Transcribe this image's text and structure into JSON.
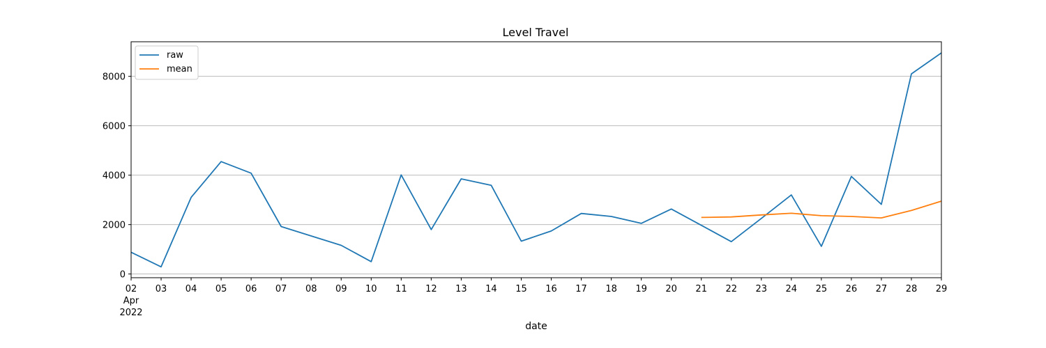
{
  "chart_data": {
    "type": "line",
    "title": "Level Travel",
    "xlabel": "date",
    "ylabel": "",
    "x": [
      "2022-04-02",
      "2022-04-03",
      "2022-04-04",
      "2022-04-05",
      "2022-04-06",
      "2022-04-07",
      "2022-04-08",
      "2022-04-09",
      "2022-04-10",
      "2022-04-11",
      "2022-04-12",
      "2022-04-13",
      "2022-04-14",
      "2022-04-15",
      "2022-04-16",
      "2022-04-17",
      "2022-04-18",
      "2022-04-19",
      "2022-04-20",
      "2022-04-21",
      "2022-04-22",
      "2022-04-23",
      "2022-04-24",
      "2022-04-25",
      "2022-04-26",
      "2022-04-27",
      "2022-04-28",
      "2022-04-29"
    ],
    "x_tick_labels": [
      "02",
      "03",
      "04",
      "05",
      "06",
      "07",
      "08",
      "09",
      "10",
      "11",
      "12",
      "13",
      "14",
      "15",
      "16",
      "17",
      "18",
      "19",
      "20",
      "21",
      "22",
      "23",
      "24",
      "25",
      "26",
      "27",
      "28",
      "29"
    ],
    "x_tick_sublabels": [
      "Apr",
      "2022"
    ],
    "xlim": [
      "2022-04-02",
      "2022-04-29"
    ],
    "ylim": [
      -150,
      9400
    ],
    "y_ticks": [
      0,
      2000,
      4000,
      6000,
      8000
    ],
    "y_tick_labels": [
      "0",
      "2000",
      "4000",
      "6000",
      "8000"
    ],
    "grid": "horizontal",
    "legend_position": "top-left",
    "series": [
      {
        "name": "raw",
        "color": "#1f77b4",
        "values": [
          880,
          290,
          3100,
          4550,
          4080,
          1920,
          1540,
          1160,
          500,
          4010,
          1800,
          3850,
          3590,
          1330,
          1740,
          2450,
          2330,
          2050,
          2630,
          1970,
          1310,
          2250,
          3200,
          1120,
          3950,
          2820,
          8100,
          8950
        ]
      },
      {
        "name": "mean",
        "color": "#ff7f0e",
        "values": [
          null,
          null,
          null,
          null,
          null,
          null,
          null,
          null,
          null,
          null,
          null,
          null,
          null,
          null,
          null,
          null,
          null,
          null,
          null,
          2290,
          2310,
          2390,
          2460,
          2360,
          2330,
          2270,
          2570,
          2950
        ]
      }
    ]
  }
}
